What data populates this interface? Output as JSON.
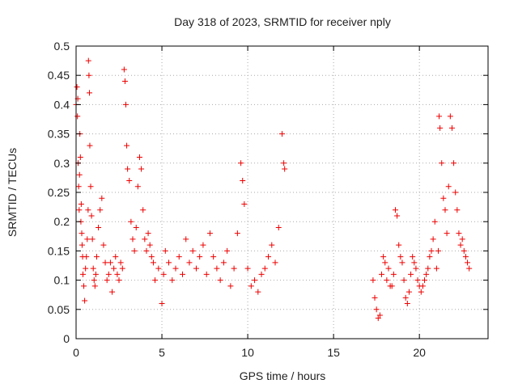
{
  "chart_data": {
    "type": "scatter",
    "title": "Day 318 of 2023, SRMTID for receiver nply",
    "xlabel": "GPS time / hours",
    "ylabel": "SRMTID / TECUs",
    "xlim": [
      0,
      24
    ],
    "ylim": [
      0,
      0.5
    ],
    "grid": true,
    "marker": "plus",
    "x_ticks": [
      0,
      5,
      10,
      15,
      20
    ],
    "x_tick_labels": [
      "0",
      "5",
      "10",
      "15",
      "20"
    ],
    "y_ticks": [
      0,
      0.05,
      0.1,
      0.15,
      0.2,
      0.25,
      0.3,
      0.35,
      0.4,
      0.45,
      0.5
    ],
    "y_tick_labels": [
      "0",
      "0.05",
      "0.1",
      "0.15",
      "0.2",
      "0.25",
      "0.3",
      "0.35",
      "0.4",
      "0.45",
      "0.5"
    ],
    "series": [
      {
        "name": "SRMTID",
        "color": "#ee0000",
        "x": [
          0.0,
          0.05,
          0.08,
          0.1,
          0.12,
          0.15,
          0.18,
          0.2,
          0.22,
          0.25,
          0.28,
          0.3,
          0.33,
          0.35,
          0.38,
          0.4,
          0.45,
          0.5,
          0.55,
          0.6,
          0.65,
          0.7,
          0.72,
          0.75,
          0.78,
          0.8,
          0.85,
          0.9,
          0.95,
          1.0,
          1.05,
          1.1,
          1.15,
          1.2,
          1.3,
          1.4,
          1.5,
          1.6,
          1.7,
          1.8,
          1.9,
          2.0,
          2.1,
          2.2,
          2.3,
          2.4,
          2.5,
          2.6,
          2.7,
          2.8,
          2.85,
          2.9,
          2.95,
          3.0,
          3.1,
          3.2,
          3.3,
          3.4,
          3.5,
          3.6,
          3.7,
          3.8,
          3.9,
          4.0,
          4.1,
          4.2,
          4.3,
          4.4,
          4.5,
          4.6,
          4.8,
          5.0,
          5.1,
          5.2,
          5.4,
          5.6,
          5.8,
          6.0,
          6.2,
          6.4,
          6.6,
          6.8,
          7.0,
          7.2,
          7.4,
          7.6,
          7.8,
          8.0,
          8.2,
          8.4,
          8.6,
          8.8,
          9.0,
          9.2,
          9.4,
          9.6,
          9.7,
          9.8,
          10.0,
          10.2,
          10.4,
          10.6,
          10.8,
          11.0,
          11.2,
          11.4,
          11.6,
          11.8,
          12.0,
          12.1,
          12.15,
          17.3,
          17.4,
          17.5,
          17.6,
          17.7,
          17.8,
          17.9,
          18.0,
          18.1,
          18.2,
          18.3,
          18.4,
          18.5,
          18.6,
          18.7,
          18.8,
          18.9,
          19.0,
          19.1,
          19.2,
          19.3,
          19.4,
          19.5,
          19.6,
          19.7,
          19.8,
          19.9,
          20.0,
          20.1,
          20.2,
          20.3,
          20.4,
          20.5,
          20.6,
          20.7,
          20.8,
          20.9,
          21.0,
          21.1,
          21.15,
          21.2,
          21.3,
          21.4,
          21.5,
          21.6,
          21.7,
          21.8,
          21.9,
          22.0,
          22.1,
          22.2,
          22.3,
          22.4,
          22.5,
          22.6,
          22.7,
          22.8,
          22.9
        ],
        "y": [
          0.4,
          0.43,
          0.38,
          0.41,
          0.3,
          0.26,
          0.22,
          0.28,
          0.35,
          0.31,
          0.2,
          0.23,
          0.18,
          0.16,
          0.14,
          0.11,
          0.09,
          0.065,
          0.12,
          0.14,
          0.17,
          0.22,
          0.475,
          0.45,
          0.42,
          0.33,
          0.26,
          0.21,
          0.17,
          0.12,
          0.1,
          0.09,
          0.11,
          0.14,
          0.19,
          0.22,
          0.24,
          0.16,
          0.13,
          0.1,
          0.11,
          0.13,
          0.08,
          0.12,
          0.14,
          0.11,
          0.1,
          0.13,
          0.12,
          0.46,
          0.44,
          0.4,
          0.33,
          0.29,
          0.27,
          0.2,
          0.17,
          0.15,
          0.19,
          0.26,
          0.31,
          0.29,
          0.22,
          0.17,
          0.15,
          0.18,
          0.16,
          0.14,
          0.13,
          0.1,
          0.12,
          0.06,
          0.11,
          0.15,
          0.13,
          0.1,
          0.12,
          0.14,
          0.11,
          0.17,
          0.13,
          0.15,
          0.12,
          0.14,
          0.16,
          0.11,
          0.18,
          0.14,
          0.12,
          0.1,
          0.13,
          0.15,
          0.09,
          0.12,
          0.18,
          0.3,
          0.27,
          0.23,
          0.12,
          0.09,
          0.1,
          0.08,
          0.11,
          0.12,
          0.14,
          0.16,
          0.13,
          0.19,
          0.35,
          0.3,
          0.29,
          0.1,
          0.07,
          0.05,
          0.035,
          0.04,
          0.11,
          0.14,
          0.13,
          0.1,
          0.12,
          0.09,
          0.09,
          0.11,
          0.22,
          0.21,
          0.16,
          0.14,
          0.13,
          0.1,
          0.07,
          0.06,
          0.08,
          0.11,
          0.14,
          0.13,
          0.12,
          0.1,
          0.09,
          0.08,
          0.09,
          0.1,
          0.11,
          0.12,
          0.14,
          0.15,
          0.17,
          0.2,
          0.12,
          0.15,
          0.38,
          0.36,
          0.3,
          0.24,
          0.22,
          0.18,
          0.26,
          0.38,
          0.36,
          0.3,
          0.25,
          0.22,
          0.18,
          0.16,
          0.17,
          0.15,
          0.14,
          0.13,
          0.12
        ]
      }
    ]
  }
}
